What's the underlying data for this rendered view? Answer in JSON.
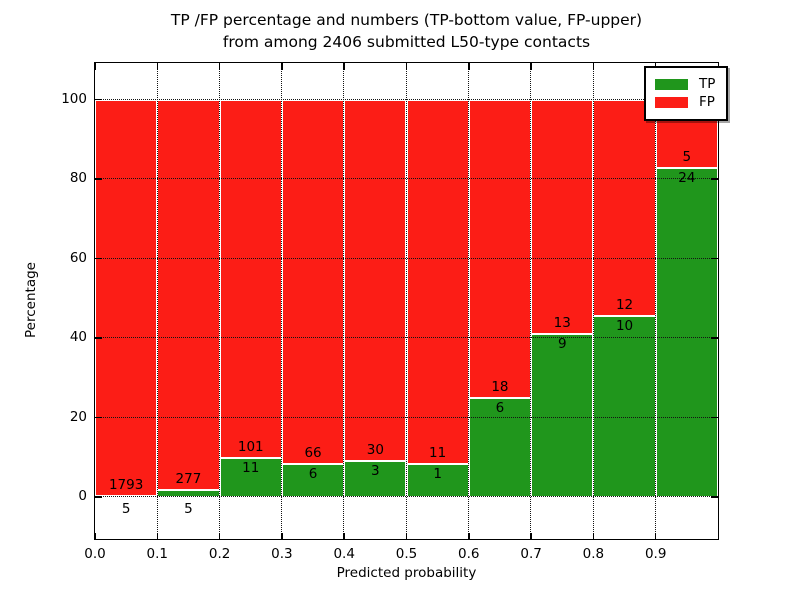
{
  "figure": {
    "title_line1": "TP /FP percentage and numbers (TP-bottom value, FP-upper)",
    "title_line2": "from among 2406 submitted L50-type contacts"
  },
  "chart_data": {
    "type": "bar",
    "stacked": true,
    "normalized_to_percent": true,
    "title": "TP /FP percentage and numbers (TP-bottom value, FP-upper) from among 2406 submitted L50-type contacts",
    "xlabel": "Predicted probability",
    "ylabel": "Percentage",
    "xlim": [
      0.0,
      1.0
    ],
    "ylim": [
      -10.8,
      109.2
    ],
    "xticks": [
      "0.0",
      "0.1",
      "0.2",
      "0.3",
      "0.4",
      "0.5",
      "0.6",
      "0.7",
      "0.8",
      "0.9"
    ],
    "xtick_values": [
      0.0,
      0.1,
      0.2,
      0.3,
      0.4,
      0.5,
      0.6,
      0.7,
      0.8,
      0.9
    ],
    "yticks": [
      "0",
      "20",
      "40",
      "60",
      "80",
      "100"
    ],
    "ytick_values": [
      0,
      20,
      40,
      60,
      80,
      100
    ],
    "bin_width": 0.1,
    "categories": [
      "0.0-0.1",
      "0.1-0.2",
      "0.2-0.3",
      "0.3-0.4",
      "0.4-0.5",
      "0.5-0.6",
      "0.6-0.7",
      "0.7-0.8",
      "0.8-0.9",
      "0.9-1.0"
    ],
    "series": [
      {
        "name": "TP",
        "color": "#20961c",
        "counts": [
          5,
          5,
          11,
          6,
          3,
          1,
          6,
          9,
          10,
          24
        ]
      },
      {
        "name": "FP",
        "color": "#fc1d16",
        "counts": [
          1793,
          277,
          101,
          66,
          30,
          11,
          18,
          13,
          12,
          5
        ]
      }
    ],
    "tp_percent_heights": [
      0.28,
      1.77,
      9.82,
      8.33,
      9.09,
      8.33,
      25.0,
      40.91,
      45.45,
      82.76
    ],
    "total_contacts": 2406,
    "grid": {
      "visible": true,
      "style": "dotted",
      "color": "#000000"
    },
    "legend": {
      "position": "upper right",
      "entries": [
        "TP",
        "FP"
      ]
    }
  }
}
